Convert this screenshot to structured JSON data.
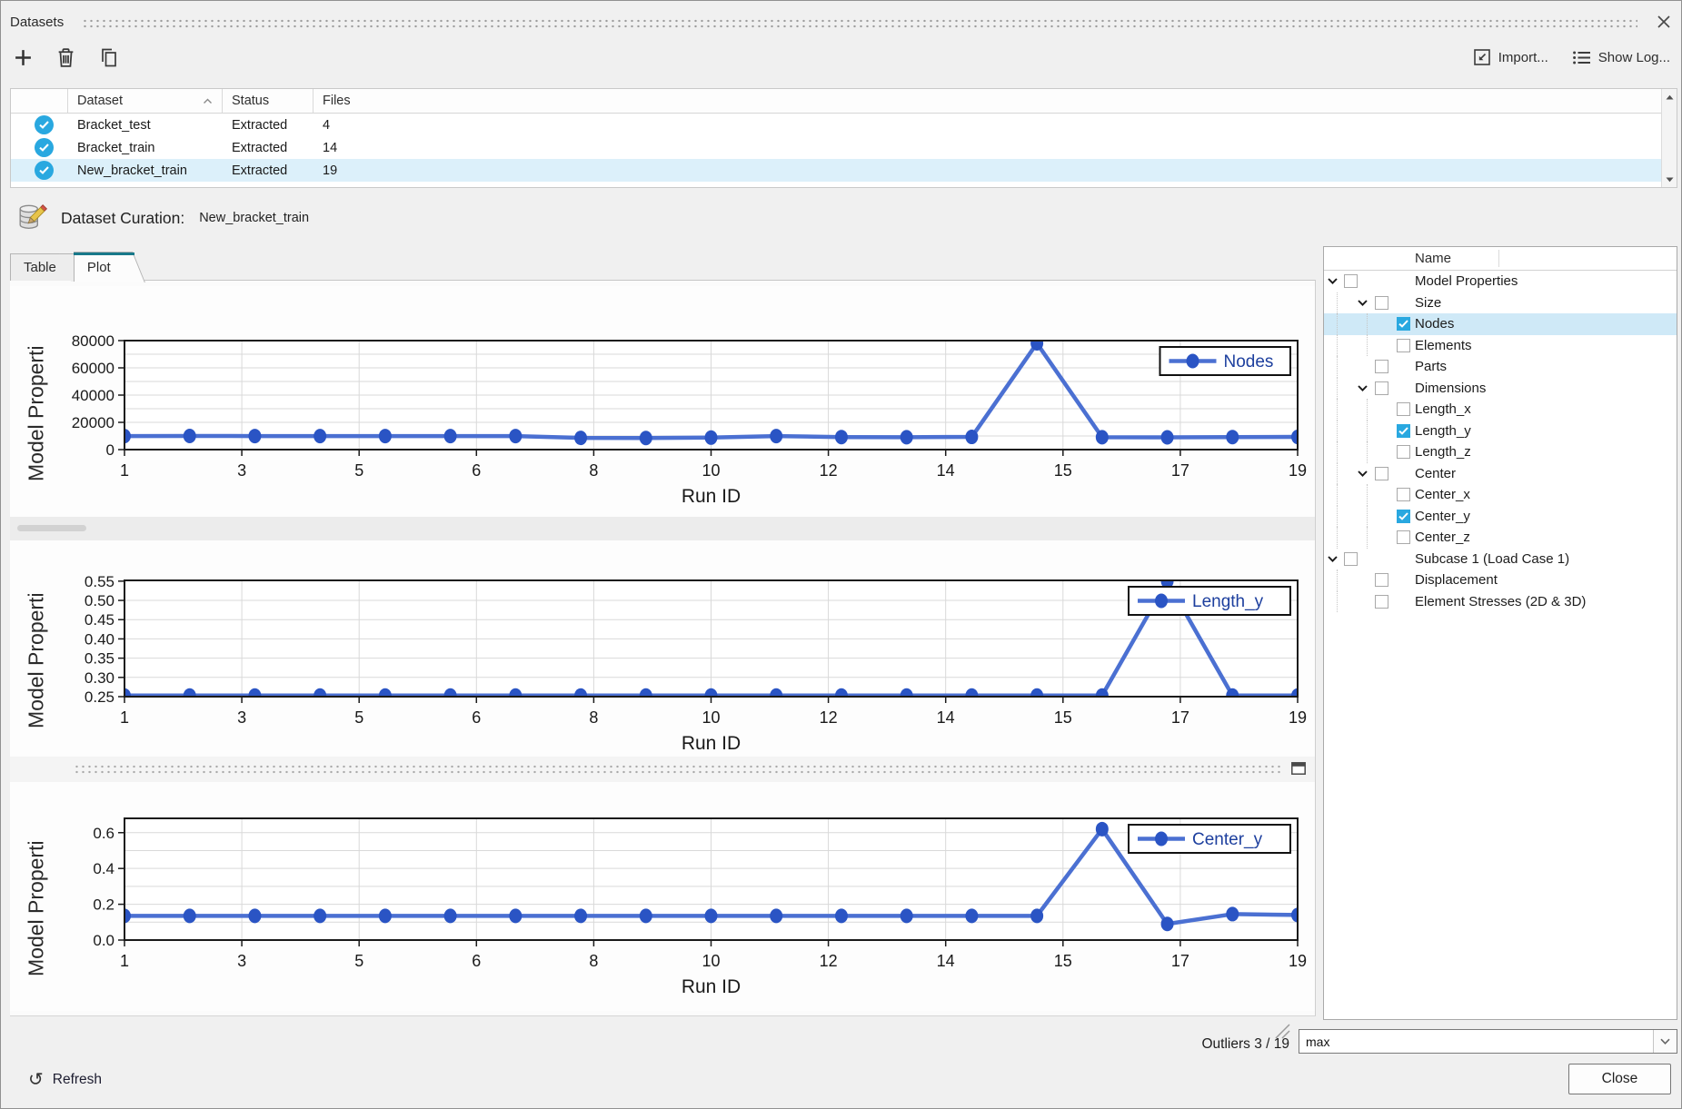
{
  "window": {
    "title": "Datasets"
  },
  "toolbar": {
    "import_label": "Import...",
    "show_log_label": "Show Log..."
  },
  "dataset_table": {
    "columns": [
      "Dataset",
      "Status",
      "Files"
    ],
    "rows": [
      {
        "name": "Bracket_test",
        "status": "Extracted",
        "files": "4",
        "selected": false
      },
      {
        "name": "Bracket_train",
        "status": "Extracted",
        "files": "14",
        "selected": false
      },
      {
        "name": "New_bracket_train",
        "status": "Extracted",
        "files": "19",
        "selected": true
      }
    ]
  },
  "curation": {
    "label": "Dataset Curation:",
    "dataset": "New_bracket_train"
  },
  "tabs": [
    {
      "label": "Table",
      "active": false
    },
    {
      "label": "Plot",
      "active": true
    }
  ],
  "chart_data": [
    {
      "type": "line",
      "x": [
        1,
        2,
        3,
        4,
        5,
        6,
        7,
        8,
        9,
        10,
        11,
        12,
        13,
        14,
        15,
        16,
        17,
        18,
        19
      ],
      "series": [
        {
          "name": "Nodes",
          "values": [
            9900,
            10000,
            9950,
            9900,
            9950,
            9900,
            9950,
            8600,
            8500,
            8800,
            9900,
            9200,
            9100,
            9300,
            78000,
            9100,
            9000,
            9200,
            9300
          ]
        }
      ],
      "title": "",
      "xlabel": "Run ID",
      "ylabel": "Model Properti",
      "ylim": [
        0,
        80000
      ],
      "yticks": [
        0,
        20000,
        40000,
        60000,
        80000
      ],
      "ytick_labels": [
        "0",
        "20000",
        "40000",
        "60000",
        "80000"
      ],
      "grid_step": 10000,
      "xtick_labels": [
        "1",
        "3",
        "5",
        "6",
        "8",
        "10",
        "12",
        "14",
        "15",
        "17",
        "19"
      ],
      "grid": true,
      "legend_position": "upper right"
    },
    {
      "type": "line",
      "x": [
        1,
        2,
        3,
        4,
        5,
        6,
        7,
        8,
        9,
        10,
        11,
        12,
        13,
        14,
        15,
        16,
        17,
        18,
        19
      ],
      "series": [
        {
          "name": "Length_y",
          "values": [
            0.253,
            0.253,
            0.253,
            0.253,
            0.253,
            0.253,
            0.253,
            0.253,
            0.253,
            0.253,
            0.253,
            0.253,
            0.253,
            0.253,
            0.253,
            0.253,
            0.55,
            0.253,
            0.253
          ]
        }
      ],
      "title": "",
      "xlabel": "Run ID",
      "ylabel": "Model Properti",
      "ylim": [
        0.25,
        0.552
      ],
      "yticks": [
        0.25,
        0.3,
        0.35,
        0.4,
        0.45,
        0.5,
        0.55
      ],
      "ytick_labels": [
        "0.25",
        "0.30",
        "0.35",
        "0.40",
        "0.45",
        "0.50",
        "0.55"
      ],
      "grid_step": 0.05,
      "xtick_labels": [
        "1",
        "3",
        "5",
        "6",
        "8",
        "10",
        "12",
        "14",
        "15",
        "17",
        "19"
      ],
      "grid": true,
      "legend_position": "upper right"
    },
    {
      "type": "line",
      "x": [
        1,
        2,
        3,
        4,
        5,
        6,
        7,
        8,
        9,
        10,
        11,
        12,
        13,
        14,
        15,
        16,
        17,
        18,
        19
      ],
      "series": [
        {
          "name": "Center_y",
          "values": [
            0.135,
            0.135,
            0.135,
            0.135,
            0.135,
            0.135,
            0.135,
            0.135,
            0.135,
            0.135,
            0.135,
            0.135,
            0.135,
            0.135,
            0.135,
            0.62,
            0.09,
            0.145,
            0.14
          ]
        }
      ],
      "title": "",
      "xlabel": "Run ID",
      "ylabel": "Model Properti",
      "ylim": [
        0,
        0.68
      ],
      "yticks": [
        0.0,
        0.2,
        0.4,
        0.6
      ],
      "ytick_labels": [
        "0.0",
        "0.2",
        "0.4",
        "0.6"
      ],
      "grid_step": 0.1,
      "xtick_labels": [
        "1",
        "3",
        "5",
        "6",
        "8",
        "10",
        "12",
        "14",
        "15",
        "17",
        "19"
      ],
      "grid": true,
      "legend_position": "upper right"
    }
  ],
  "tree": {
    "header": "Name",
    "items": [
      {
        "label": "Model Properties",
        "level": 0,
        "chevron": true,
        "checked": false,
        "selected": false
      },
      {
        "label": "Size",
        "level": 1,
        "chevron": true,
        "checked": false,
        "selected": false
      },
      {
        "label": "Nodes",
        "level": 2,
        "chevron": false,
        "checked": true,
        "selected": true
      },
      {
        "label": "Elements",
        "level": 2,
        "chevron": false,
        "checked": false,
        "selected": false
      },
      {
        "label": "Parts",
        "level": 1,
        "chevron": false,
        "checked": false,
        "selected": false
      },
      {
        "label": "Dimensions",
        "level": 1,
        "chevron": true,
        "checked": false,
        "selected": false
      },
      {
        "label": "Length_x",
        "level": 2,
        "chevron": false,
        "checked": false,
        "selected": false
      },
      {
        "label": "Length_y",
        "level": 2,
        "chevron": false,
        "checked": true,
        "selected": false
      },
      {
        "label": "Length_z",
        "level": 2,
        "chevron": false,
        "checked": false,
        "selected": false
      },
      {
        "label": "Center",
        "level": 1,
        "chevron": true,
        "checked": false,
        "selected": false
      },
      {
        "label": "Center_x",
        "level": 2,
        "chevron": false,
        "checked": false,
        "selected": false
      },
      {
        "label": "Center_y",
        "level": 2,
        "chevron": false,
        "checked": true,
        "selected": false
      },
      {
        "label": "Center_z",
        "level": 2,
        "chevron": false,
        "checked": false,
        "selected": false
      },
      {
        "label": "Subcase 1 (Load Case 1)",
        "level": 0,
        "chevron": true,
        "checked": false,
        "selected": false
      },
      {
        "label": "Displacement",
        "level": 1,
        "chevron": false,
        "checked": false,
        "selected": false
      },
      {
        "label": "Element Stresses (2D & 3D)",
        "level": 1,
        "chevron": false,
        "checked": false,
        "selected": false
      }
    ]
  },
  "footer": {
    "outliers": "Outliers 3 / 19",
    "combo_value": "max",
    "close_label": "Close",
    "refresh_label": "Refresh"
  },
  "colors": {
    "accent_blue": "#29a8e0",
    "line": "#4b70d2",
    "marker": "#2a54c4",
    "legend_text": "#1d3f9e",
    "tab_active": "#18798a",
    "selected_row": "#dcf0fa"
  }
}
